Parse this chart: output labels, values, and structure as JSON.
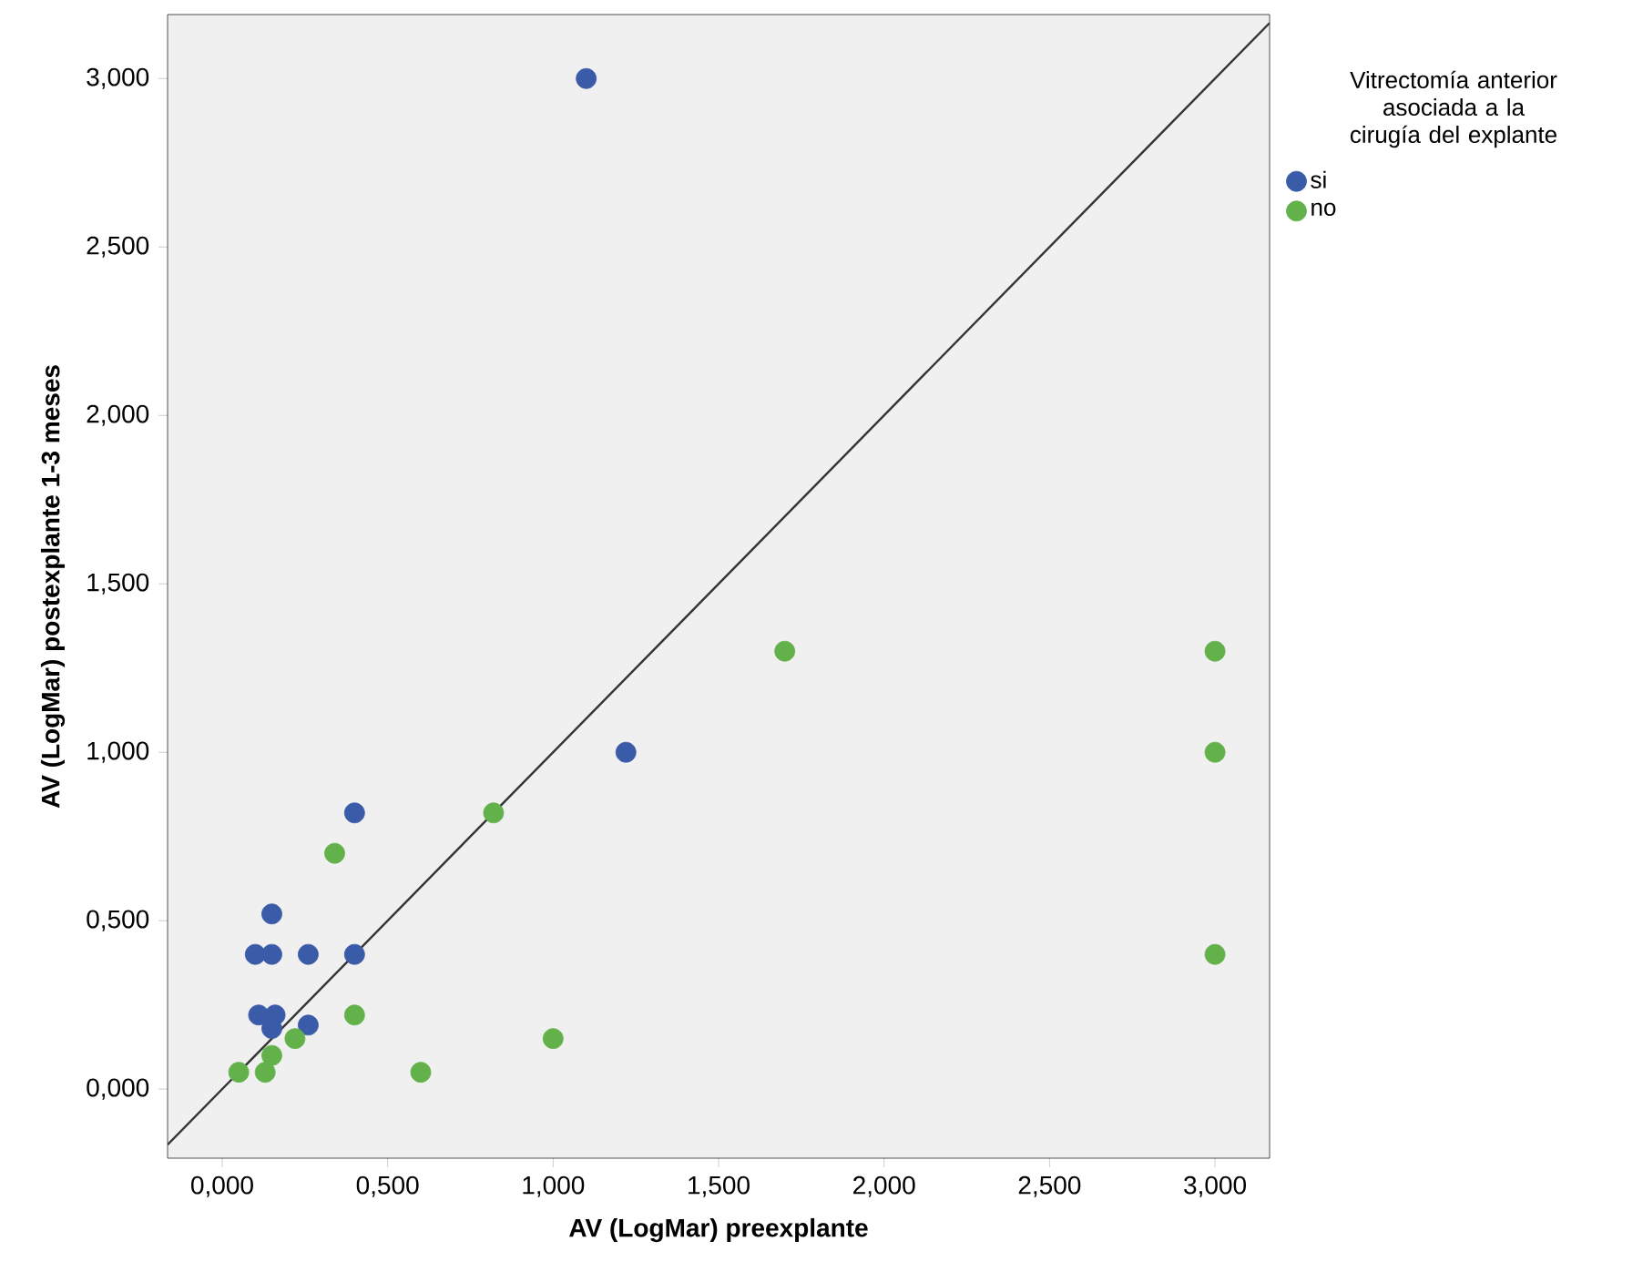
{
  "chart_data": {
    "type": "scatter",
    "xlabel": "AV (LogMar) preexplante",
    "ylabel": "AV (LogMar) postexplante 1-3 meses",
    "legend_title": "Vitrectomía anterior asociada a la cirugía del explante",
    "legend": "top right",
    "grid": false,
    "xlim": [
      -0.165,
      3.165
    ],
    "ylim": [
      -0.205,
      3.19
    ],
    "xticks": [
      {
        "value": 0,
        "label": "0,000"
      },
      {
        "value": 0.5,
        "label": "0,500"
      },
      {
        "value": 1,
        "label": "1,000"
      },
      {
        "value": 1.5,
        "label": "1,500"
      },
      {
        "value": 2,
        "label": "2,000"
      },
      {
        "value": 2.5,
        "label": "2,500"
      },
      {
        "value": 3,
        "label": "3,000"
      }
    ],
    "yticks": [
      {
        "value": 0,
        "label": "0,000"
      },
      {
        "value": 0.5,
        "label": "0,500"
      },
      {
        "value": 1,
        "label": "1,000"
      },
      {
        "value": 1.5,
        "label": "1,500"
      },
      {
        "value": 2,
        "label": "2,000"
      },
      {
        "value": 2.5,
        "label": "2,500"
      },
      {
        "value": 3,
        "label": "3,000"
      }
    ],
    "series": [
      {
        "name": "si",
        "marker": "circle",
        "color": "#3a5ba8",
        "x": [
          1.1,
          1.22,
          0.4,
          0.15,
          0.1,
          0.15,
          0.26,
          0.4,
          0.11,
          0.16,
          0.15,
          0.26
        ],
        "values": [
          3.0,
          1.0,
          0.82,
          0.52,
          0.4,
          0.4,
          0.4,
          0.4,
          0.22,
          0.22,
          0.18,
          0.19
        ]
      },
      {
        "name": "no",
        "marker": "circle",
        "color": "#63b14a",
        "x": [
          0.05,
          0.13,
          0.15,
          0.22,
          0.4,
          0.34,
          0.6,
          0.82,
          1.0,
          1.7,
          3.0,
          3.0,
          3.0
        ],
        "values": [
          0.05,
          0.05,
          0.1,
          0.15,
          0.22,
          0.7,
          0.05,
          0.82,
          0.15,
          1.3,
          1.3,
          1.0,
          0.4
        ]
      },
      {
        "type": "line",
        "marker": "none",
        "color": "#333333",
        "x": [
          -0.165,
          3.165
        ],
        "values": [
          -0.165,
          3.165
        ]
      }
    ]
  }
}
